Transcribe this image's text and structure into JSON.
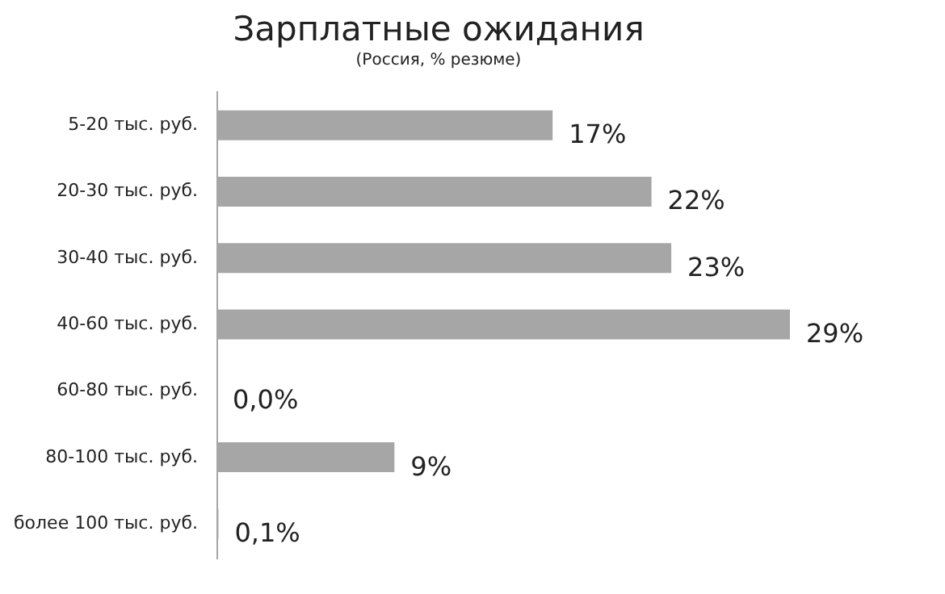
{
  "chart_data": {
    "type": "bar",
    "orientation": "horizontal",
    "title": "Зарплатные ожидания",
    "subtitle": "(Россия, % резюме)",
    "categories": [
      "5-20 тыс. руб.",
      "20-30 тыс. руб.",
      "30-40 тыс. руб.",
      "40-60 тыс. руб.",
      "60-80 тыс. руб.",
      "80-100 тыс. руб.",
      "более 100 тыс. руб."
    ],
    "values": [
      17,
      22,
      23,
      29,
      0.0,
      9,
      0.1
    ],
    "value_labels": [
      "17%",
      "22%",
      "23%",
      "29%",
      "0,0%",
      "9%",
      "0,1%"
    ],
    "color": "#a6a6a6"
  }
}
